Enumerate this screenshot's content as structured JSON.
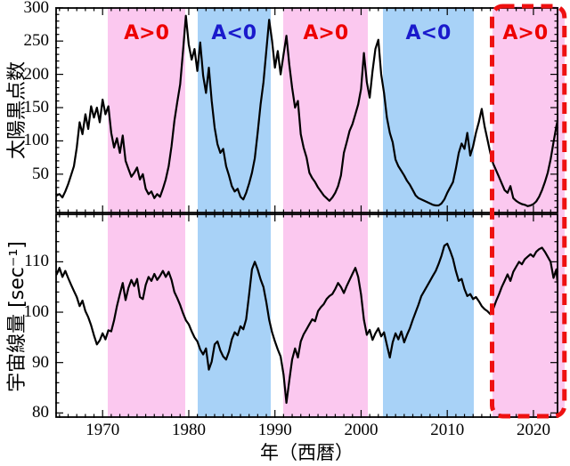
{
  "figure": {
    "xlabel": "年（西暦）",
    "x_ticks": [
      1970,
      1980,
      1990,
      2000,
      2010,
      2020
    ],
    "xlim": [
      1964.5,
      2022.9
    ],
    "bands": [
      {
        "label": "A>0",
        "polarity": "positive",
        "from": 1970.6,
        "to": 1979.6
      },
      {
        "label": "A<0",
        "polarity": "negative",
        "from": 1981.0,
        "to": 1989.5
      },
      {
        "label": "A>0",
        "polarity": "positive",
        "from": 1991.0,
        "to": 2000.8
      },
      {
        "label": "A<0",
        "polarity": "negative",
        "from": 2002.5,
        "to": 2013.1
      },
      {
        "label": "A>0",
        "polarity": "positive",
        "from": 2015.2,
        "to": 2022.9,
        "highlighted": true
      }
    ],
    "highlight_box": {
      "from": 2015.2,
      "to": 2023.6,
      "color": "#ee1111"
    },
    "colors": {
      "band_positive": "#fbc8ef",
      "band_negative": "#a8d2f7",
      "label_positive": "#ee0000",
      "label_negative": "#1a1acc",
      "curve": "#000000",
      "frame": "#000000"
    },
    "panels": [
      {
        "ylabel": "太陽黒点数",
        "y_ticks": [
          50,
          100,
          150,
          200,
          250,
          300
        ],
        "ylim": [
          -9,
          301
        ],
        "y_minor_step": 10
      },
      {
        "ylabel": "宇宙線量 [sec⁻¹]",
        "y_ticks": [
          80,
          90,
          100,
          110
        ],
        "ylim": [
          79,
          119.6
        ],
        "y_minor_step": 2
      }
    ]
  },
  "chart_data": [
    {
      "type": "line",
      "name": "sunspot-number",
      "title": "太陽黒点数",
      "x_start": 1964.667,
      "x_step": 0.3333,
      "x_end": 2023.0,
      "values": [
        18,
        20,
        15,
        24,
        35,
        48,
        62,
        90,
        128,
        110,
        140,
        118,
        152,
        135,
        150,
        128,
        162,
        140,
        152,
        112,
        90,
        104,
        82,
        108,
        70,
        58,
        46,
        52,
        60,
        42,
        50,
        28,
        20,
        24,
        14,
        20,
        16,
        28,
        42,
        62,
        92,
        130,
        158,
        185,
        235,
        288,
        245,
        222,
        238,
        205,
        248,
        198,
        172,
        210,
        160,
        120,
        95,
        82,
        88,
        62,
        48,
        32,
        24,
        28,
        16,
        12,
        22,
        36,
        52,
        74,
        112,
        155,
        188,
        235,
        282,
        250,
        210,
        235,
        200,
        230,
        258,
        215,
        180,
        150,
        160,
        110,
        90,
        75,
        52,
        44,
        38,
        30,
        24,
        18,
        14,
        10,
        15,
        22,
        32,
        48,
        82,
        98,
        115,
        125,
        140,
        155,
        178,
        232,
        188,
        165,
        205,
        238,
        252,
        200,
        172,
        135,
        112,
        98,
        72,
        62,
        55,
        48,
        40,
        34,
        26,
        18,
        14,
        12,
        10,
        8,
        6,
        4,
        3,
        3,
        6,
        12,
        22,
        30,
        38,
        58,
        82,
        96,
        88,
        112,
        78,
        92,
        112,
        128,
        148,
        122,
        102,
        82,
        66,
        56,
        46,
        36,
        26,
        22,
        32,
        14,
        10,
        7,
        5,
        4,
        2,
        3,
        5,
        9,
        16,
        26,
        38,
        52,
        72,
        98,
        122,
        142
      ]
    },
    {
      "type": "line",
      "name": "cosmic-ray-count-rate",
      "title": "宇宙線量 [sec⁻¹]",
      "x_start": 1964.667,
      "x_step": 0.3333,
      "x_end": 2023.0,
      "values": [
        107.5,
        108.8,
        107.0,
        108.2,
        106.8,
        105.5,
        104.2,
        103.0,
        101.2,
        102.3,
        100.2,
        99.0,
        97.4,
        95.4,
        93.6,
        94.4,
        95.8,
        94.6,
        96.4,
        96.2,
        98.4,
        101.2,
        103.6,
        105.8,
        102.4,
        104.8,
        106.4,
        105.2,
        106.6,
        103.0,
        102.6,
        105.4,
        107.0,
        106.2,
        107.6,
        106.4,
        107.2,
        108.2,
        107.0,
        108.0,
        106.4,
        104.0,
        102.8,
        101.4,
        99.8,
        98.4,
        97.6,
        96.2,
        95.0,
        94.2,
        92.6,
        91.6,
        92.8,
        88.6,
        90.2,
        93.6,
        94.2,
        92.4,
        91.2,
        90.6,
        92.2,
        94.6,
        96.0,
        95.4,
        97.2,
        96.6,
        98.6,
        103.5,
        108.5,
        110.0,
        108.5,
        106.5,
        105.0,
        102.0,
        98.5,
        96.0,
        94.2,
        92.6,
        91.2,
        87.6,
        82.0,
        86.4,
        90.6,
        92.8,
        91.0,
        94.2,
        95.6,
        96.6,
        97.6,
        98.6,
        98.2,
        100.2,
        101.0,
        101.6,
        102.6,
        103.2,
        103.6,
        104.6,
        105.8,
        105.0,
        103.8,
        105.2,
        106.4,
        107.6,
        108.8,
        107.0,
        103.5,
        98.5,
        95.5,
        96.5,
        94.5,
        95.8,
        96.8,
        95.2,
        96.0,
        93.5,
        91.0,
        94.0,
        95.8,
        94.6,
        96.2,
        94.0,
        95.5,
        96.8,
        98.5,
        100.0,
        101.5,
        103.2,
        104.2,
        105.2,
        106.2,
        107.2,
        108.2,
        109.6,
        111.2,
        113.2,
        113.6,
        112.2,
        110.6,
        108.2,
        106.2,
        106.6,
        104.6,
        103.2,
        103.6,
        102.6,
        103.0,
        102.2,
        101.2,
        100.6,
        100.2,
        99.6,
        100.6,
        102.2,
        103.5,
        105.0,
        106.2,
        107.5,
        106.2,
        108.0,
        109.0,
        110.0,
        109.5,
        110.5,
        111.0,
        111.5,
        111.0,
        112.0,
        112.5,
        112.8,
        112.0,
        111.0,
        110.0,
        106.8,
        108.5,
        102.0
      ]
    }
  ]
}
